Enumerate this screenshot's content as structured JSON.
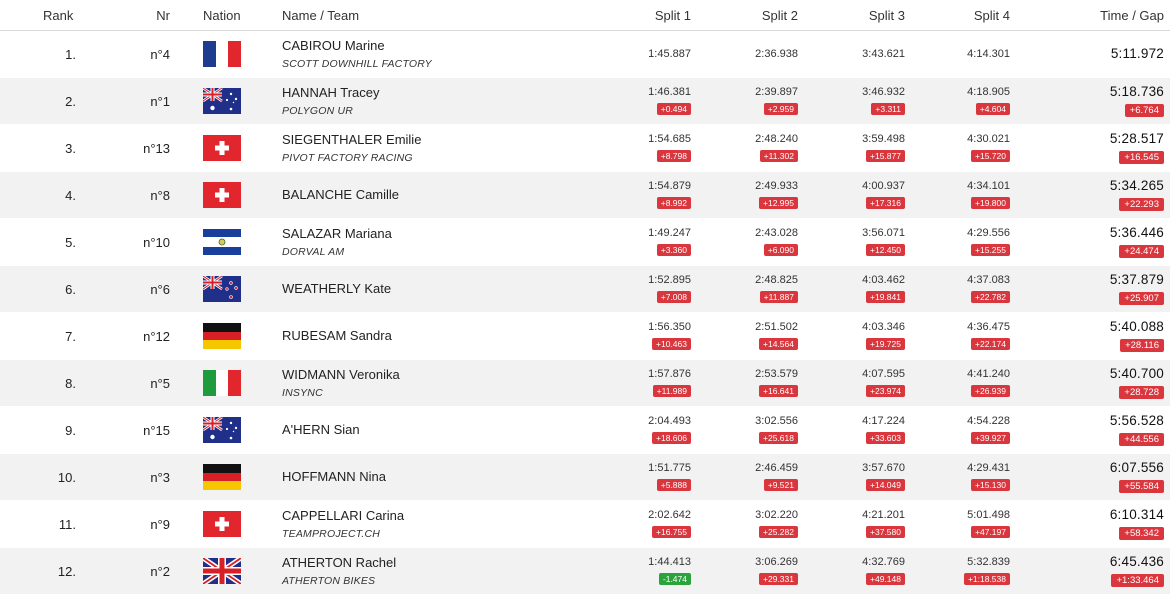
{
  "header": {
    "rank": "Rank",
    "nr": "Nr",
    "nation": "Nation",
    "name_team": "Name / Team",
    "split1": "Split 1",
    "split2": "Split 2",
    "split3": "Split 3",
    "split4": "Split 4",
    "time_gap": "Time / Gap"
  },
  "rows": [
    {
      "rank": "1.",
      "nr": "n°4",
      "nation": "france-flag-icon",
      "name": "CABIROU Marine",
      "team": "SCOTT DOWNHILL FACTORY",
      "s1": "1:45.887",
      "g1": "",
      "s2": "2:36.938",
      "g2": "",
      "s3": "3:43.621",
      "g3": "",
      "s4": "4:14.301",
      "g4": "",
      "time": "5:11.972",
      "gap": ""
    },
    {
      "rank": "2.",
      "nr": "n°1",
      "nation": "australia-flag-icon",
      "name": "HANNAH Tracey",
      "team": "POLYGON UR",
      "s1": "1:46.381",
      "g1": "+0.494",
      "s2": "2:39.897",
      "g2": "+2.959",
      "s3": "3:46.932",
      "g3": "+3.311",
      "s4": "4:18.905",
      "g4": "+4.604",
      "time": "5:18.736",
      "gap": "+6.764"
    },
    {
      "rank": "3.",
      "nr": "n°13",
      "nation": "switzerland-flag-icon",
      "name": "SIEGENTHALER Emilie",
      "team": "PIVOT FACTORY RACING",
      "s1": "1:54.685",
      "g1": "+8.798",
      "s2": "2:48.240",
      "g2": "+11.302",
      "s3": "3:59.498",
      "g3": "+15.877",
      "s4": "4:30.021",
      "g4": "+15.720",
      "time": "5:28.517",
      "gap": "+16.545"
    },
    {
      "rank": "4.",
      "nr": "n°8",
      "nation": "switzerland-flag-icon",
      "name": "BALANCHE Camille",
      "team": "",
      "s1": "1:54.879",
      "g1": "+8.992",
      "s2": "2:49.933",
      "g2": "+12.995",
      "s3": "4:00.937",
      "g3": "+17.316",
      "s4": "4:34.101",
      "g4": "+19.800",
      "time": "5:34.265",
      "gap": "+22.293"
    },
    {
      "rank": "5.",
      "nr": "n°10",
      "nation": "el-salvador-flag-icon",
      "name": "SALAZAR Mariana",
      "team": "DORVAL AM",
      "s1": "1:49.247",
      "g1": "+3.360",
      "s2": "2:43.028",
      "g2": "+6.090",
      "s3": "3:56.071",
      "g3": "+12.450",
      "s4": "4:29.556",
      "g4": "+15.255",
      "time": "5:36.446",
      "gap": "+24.474"
    },
    {
      "rank": "6.",
      "nr": "n°6",
      "nation": "new-zealand-flag-icon",
      "name": "WEATHERLY Kate",
      "team": "",
      "s1": "1:52.895",
      "g1": "+7.008",
      "s2": "2:48.825",
      "g2": "+11.887",
      "s3": "4:03.462",
      "g3": "+19.841",
      "s4": "4:37.083",
      "g4": "+22.782",
      "time": "5:37.879",
      "gap": "+25.907"
    },
    {
      "rank": "7.",
      "nr": "n°12",
      "nation": "germany-flag-icon",
      "name": "RUBESAM Sandra",
      "team": "",
      "s1": "1:56.350",
      "g1": "+10.463",
      "s2": "2:51.502",
      "g2": "+14.564",
      "s3": "4:03.346",
      "g3": "+19.725",
      "s4": "4:36.475",
      "g4": "+22.174",
      "time": "5:40.088",
      "gap": "+28.116"
    },
    {
      "rank": "8.",
      "nr": "n°5",
      "nation": "italy-flag-icon",
      "name": "WIDMANN Veronika",
      "team": "INSYNC",
      "s1": "1:57.876",
      "g1": "+11.989",
      "s2": "2:53.579",
      "g2": "+16.641",
      "s3": "4:07.595",
      "g3": "+23.974",
      "s4": "4:41.240",
      "g4": "+26.939",
      "time": "5:40.700",
      "gap": "+28.728"
    },
    {
      "rank": "9.",
      "nr": "n°15",
      "nation": "australia-flag-icon",
      "name": "A'HERN Sian",
      "team": "",
      "s1": "2:04.493",
      "g1": "+18.606",
      "s2": "3:02.556",
      "g2": "+25.618",
      "s3": "4:17.224",
      "g3": "+33.603",
      "s4": "4:54.228",
      "g4": "+39.927",
      "time": "5:56.528",
      "gap": "+44.556"
    },
    {
      "rank": "10.",
      "nr": "n°3",
      "nation": "germany-flag-icon",
      "name": "HOFFMANN Nina",
      "team": "",
      "s1": "1:51.775",
      "g1": "+5.888",
      "s2": "2:46.459",
      "g2": "+9.521",
      "s3": "3:57.670",
      "g3": "+14.049",
      "s4": "4:29.431",
      "g4": "+15.130",
      "time": "6:07.556",
      "gap": "+55.584"
    },
    {
      "rank": "11.",
      "nr": "n°9",
      "nation": "switzerland-flag-icon",
      "name": "CAPPELLARI Carina",
      "team": "TEAMPROJECT.CH",
      "s1": "2:02.642",
      "g1": "+16.755",
      "s2": "3:02.220",
      "g2": "+25.282",
      "s3": "4:21.201",
      "g3": "+37.580",
      "s4": "5:01.498",
      "g4": "+47.197",
      "time": "6:10.314",
      "gap": "+58.342"
    },
    {
      "rank": "12.",
      "nr": "n°2",
      "nation": "uk-flag-icon",
      "name": "ATHERTON Rachel",
      "team": "ATHERTON BIKES",
      "s1": "1:44.413",
      "g1": "-1.474",
      "s2": "3:06.269",
      "g2": "+29.331",
      "s3": "4:32.769",
      "g3": "+49.148",
      "s4": "5:32.839",
      "g4": "+1:18.538",
      "time": "6:45.436",
      "gap": "+1:33.464"
    }
  ],
  "colors": {
    "gap_positive": "#d9363e",
    "gap_negative": "#2aa33a",
    "row_alt": "#f2f2f2"
  }
}
